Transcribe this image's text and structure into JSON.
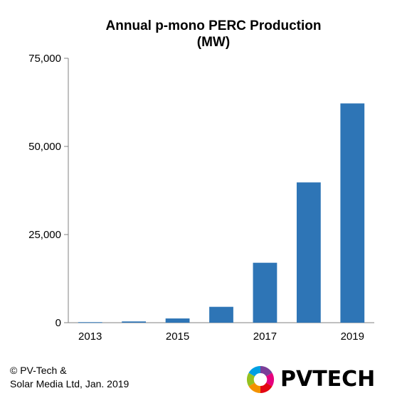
{
  "chart_data": {
    "type": "bar",
    "title_lines": [
      "Annual p-mono PERC Production",
      "(MW)"
    ],
    "categories": [
      "2013",
      "2014",
      "2015",
      "2016",
      "2017",
      "2018",
      "2019"
    ],
    "values": [
      150,
      350,
      1200,
      4500,
      17000,
      39800,
      62200
    ],
    "x_tick_labels": [
      "2013",
      "",
      "2015",
      "",
      "2017",
      "",
      "2019"
    ],
    "y_ticks": [
      0,
      25000,
      50000,
      75000
    ],
    "y_tick_labels": [
      "0",
      "25,000",
      "50,000",
      "75,000"
    ],
    "ylim": [
      0,
      75000
    ],
    "xlabel": "",
    "ylabel": "",
    "bar_color": "#2E75B6",
    "grid": false,
    "legend": "none"
  },
  "credit": {
    "line1": "© PV-Tech &",
    "line2": "Solar Media Ltd, Jan. 2019"
  },
  "logo": {
    "text": "PVTECH",
    "icon": "pvtech-logo-icon"
  }
}
